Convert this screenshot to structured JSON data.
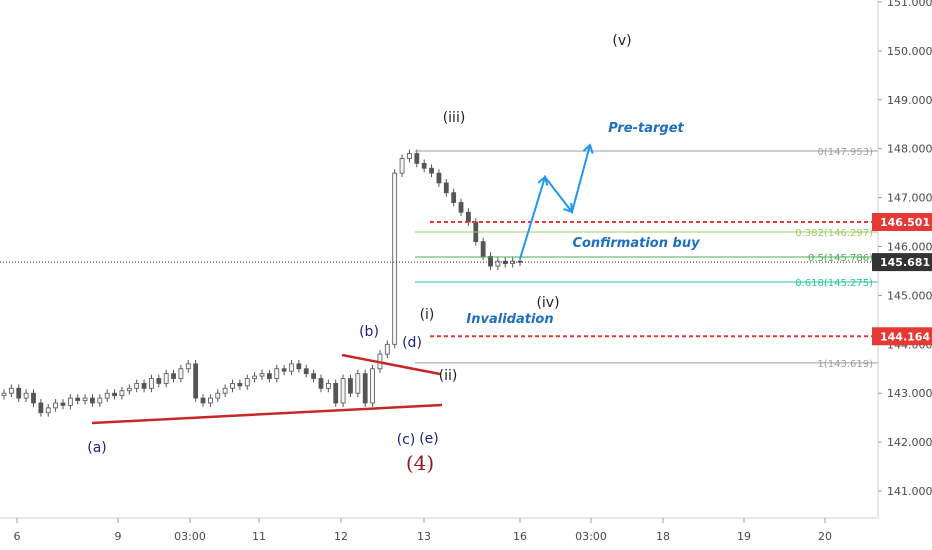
{
  "chart_data": {
    "type": "candlestick",
    "y_axis": {
      "ticks": [
        "151.000",
        "150.000",
        "149.000",
        "148.000",
        "147.000",
        "146.000",
        "145.000",
        "144.000",
        "143.000",
        "142.000",
        "141.000"
      ],
      "range": [
        140.6,
        151.2
      ]
    },
    "x_axis": {
      "ticks": [
        "6",
        "9",
        "03:00",
        "11",
        "12",
        "13",
        "16",
        "03:00",
        "18",
        "19",
        "20"
      ]
    },
    "candles_close": [
      143.0,
      143.1,
      142.9,
      143.0,
      142.8,
      142.6,
      142.7,
      142.8,
      142.75,
      142.9,
      142.85,
      142.9,
      142.8,
      142.9,
      143.0,
      142.95,
      143.05,
      143.1,
      143.2,
      143.1,
      143.3,
      143.2,
      143.4,
      143.3,
      143.5,
      143.6,
      142.9,
      142.8,
      142.9,
      143.0,
      143.1,
      143.2,
      143.15,
      143.3,
      143.35,
      143.4,
      143.3,
      143.5,
      143.45,
      143.6,
      143.5,
      143.4,
      143.3,
      143.1,
      143.2,
      142.8,
      143.3,
      143.0,
      143.4,
      142.8,
      143.5,
      143.8,
      144.0,
      147.5,
      147.8,
      147.9,
      147.7,
      147.6,
      147.5,
      147.3,
      147.1,
      146.9,
      146.7,
      146.5,
      146.1,
      145.8,
      145.6,
      145.7,
      145.65,
      145.7,
      145.68
    ],
    "current_price": "145.681",
    "levels": [
      {
        "price": 147.953,
        "label": "0(147.953)",
        "color": "#9e9e9e"
      },
      {
        "price": 146.297,
        "label": "0.382(146.297)",
        "color": "#9ccc65"
      },
      {
        "price": 145.786,
        "label": "0.5(145.786)",
        "color": "#4caf50"
      },
      {
        "price": 145.275,
        "label": "0.618(145.275)",
        "color": "#26c6a0"
      },
      {
        "price": 143.619,
        "label": "1(143.619)",
        "color": "#9e9e9e"
      }
    ],
    "red_levels": [
      {
        "price": 146.501,
        "label": "146.501"
      },
      {
        "price": 144.164,
        "label": "144.164"
      }
    ],
    "wave_labels": [
      {
        "text": "(a)",
        "color": "#1a237e"
      },
      {
        "text": "(b)",
        "color": "#1a237e"
      },
      {
        "text": "(c)",
        "color": "#1a237e"
      },
      {
        "text": "(d)",
        "color": "#1a237e"
      },
      {
        "text": "(e)",
        "color": "#1a237e"
      },
      {
        "text": "(4)",
        "color": "#8b1a1a"
      },
      {
        "text": "(i)",
        "color": "#222222"
      },
      {
        "text": "(ii)",
        "color": "#222222"
      },
      {
        "text": "(iii)",
        "color": "#222222"
      },
      {
        "text": "(iv)",
        "color": "#222222"
      },
      {
        "text": "(v)",
        "color": "#222222"
      }
    ],
    "annotations": [
      "Pre-target",
      "Confirmation buy",
      "Invalidation"
    ],
    "colors": {
      "trendline": "#c62828",
      "arrow": "#2196f3",
      "red_level": "#e53935",
      "price_tag_bg": "#333333"
    }
  }
}
